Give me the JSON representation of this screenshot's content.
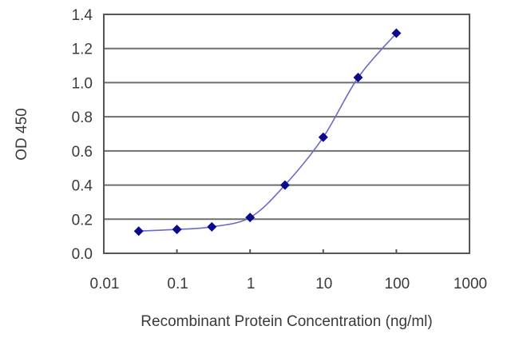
{
  "chart_data": {
    "type": "line",
    "title": "",
    "xlabel": "Recombinant Protein Concentration (ng/ml)",
    "ylabel": "OD 450",
    "xscale": "log",
    "xlim": [
      0.01,
      1000
    ],
    "ylim": [
      0,
      1.4
    ],
    "x_ticks": [
      0.01,
      0.1,
      1,
      10,
      100,
      1000
    ],
    "x_tick_labels": [
      "0.01",
      "0.1",
      "1",
      "10",
      "100",
      "1000"
    ],
    "y_ticks": [
      0.0,
      0.2,
      0.4,
      0.6,
      0.8,
      1.0,
      1.2,
      1.4
    ],
    "y_tick_labels": [
      "0.0",
      "0.2",
      "0.4",
      "0.6",
      "0.8",
      "1.0",
      "1.2",
      "1.4"
    ],
    "grid": {
      "horizontal": true,
      "vertical": false
    },
    "legend": null,
    "series": [
      {
        "name": "OD 450",
        "x": [
          0.03,
          0.1,
          0.3,
          1,
          3,
          10,
          30,
          100
        ],
        "y": [
          0.13,
          0.14,
          0.155,
          0.21,
          0.4,
          0.68,
          1.03,
          1.29
        ],
        "marker": "diamond",
        "marker_color": "#0a0a8c",
        "line_color": "#6a6ac8",
        "smooth": true
      }
    ]
  }
}
